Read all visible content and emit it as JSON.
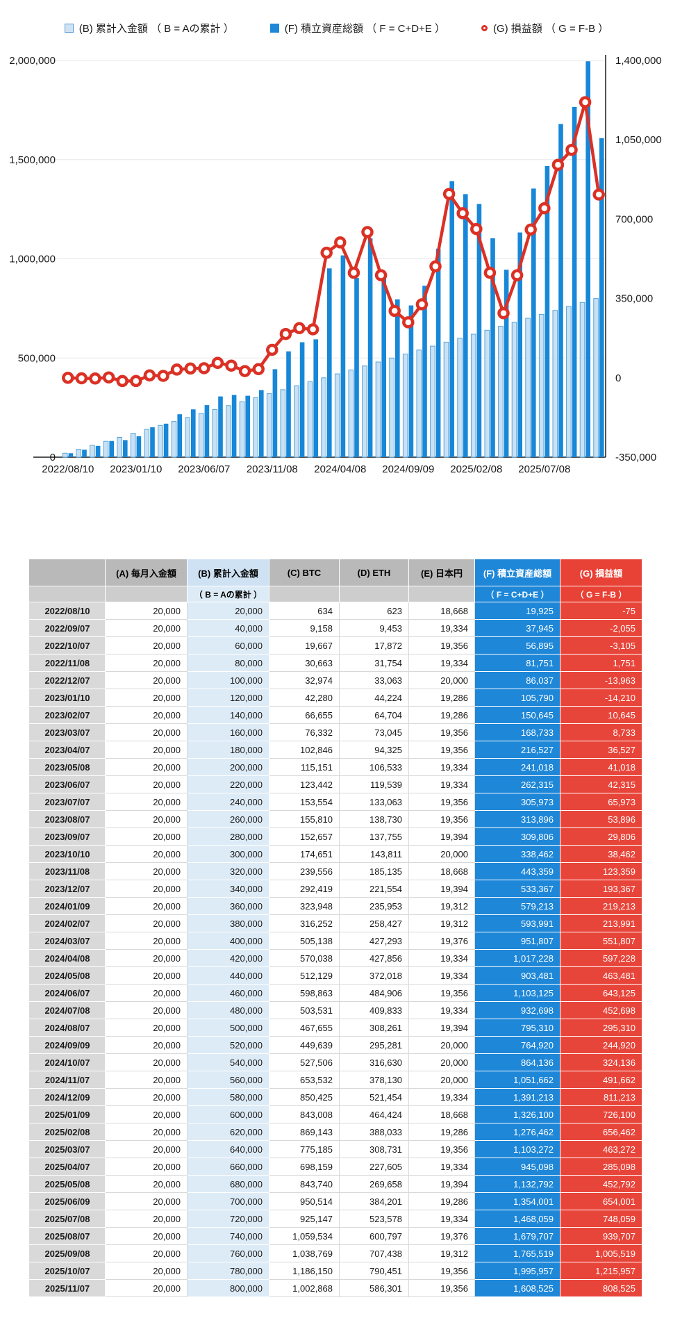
{
  "legend": [
    {
      "label": "(B) 累計入金額 （ B = Aの累計 ）",
      "marker": "light-square",
      "color": "#cfe2f3",
      "border": "#5b9bd5"
    },
    {
      "label": "(F) 積立資産総額 （ F = C+D+E ）",
      "marker": "solid-square",
      "color": "#1e87d8"
    },
    {
      "label": "(G) 損益額 （ G = F-B ）",
      "marker": "open-ring",
      "color": "#db3125"
    }
  ],
  "chart_data": {
    "type": "bar",
    "subtype": "grouped-bars-with-line",
    "x": [
      "2022/08/10",
      "2022/09/07",
      "2022/10/07",
      "2022/11/08",
      "2022/12/07",
      "2023/01/10",
      "2023/02/07",
      "2023/03/07",
      "2023/04/07",
      "2023/05/08",
      "2023/06/07",
      "2023/07/07",
      "2023/08/07",
      "2023/09/07",
      "2023/10/10",
      "2023/11/08",
      "2023/12/07",
      "2024/01/09",
      "2024/02/07",
      "2024/03/07",
      "2024/04/08",
      "2024/05/08",
      "2024/06/07",
      "2024/07/08",
      "2024/08/07",
      "2024/09/09",
      "2024/10/07",
      "2024/11/07",
      "2024/12/09",
      "2025/01/09",
      "2025/02/08",
      "2025/03/07",
      "2025/04/07",
      "2025/05/08",
      "2025/06/09",
      "2025/07/08",
      "2025/08/07",
      "2025/09/08",
      "2025/10/07",
      "2025/11/07"
    ],
    "series": [
      {
        "name": "(B) 累計入金額",
        "type": "bar",
        "axis": "left",
        "color": "#c9e1f4",
        "border": "#55a4da",
        "values": [
          20000,
          40000,
          60000,
          80000,
          100000,
          120000,
          140000,
          160000,
          180000,
          200000,
          220000,
          240000,
          260000,
          280000,
          300000,
          320000,
          340000,
          360000,
          380000,
          400000,
          420000,
          440000,
          460000,
          480000,
          500000,
          520000,
          540000,
          560000,
          580000,
          600000,
          620000,
          640000,
          660000,
          680000,
          700000,
          720000,
          740000,
          760000,
          780000,
          800000
        ]
      },
      {
        "name": "(F) 積立資産総額",
        "type": "bar",
        "axis": "left",
        "color": "#1787d8",
        "values": [
          19925,
          37945,
          56895,
          81751,
          86037,
          105790,
          150645,
          168733,
          216527,
          241018,
          262315,
          305973,
          313896,
          309806,
          338462,
          443359,
          533367,
          579213,
          593991,
          951807,
          1017228,
          903481,
          1103125,
          932698,
          795310,
          764920,
          864136,
          1051662,
          1391213,
          1326100,
          1276462,
          1103272,
          945098,
          1132792,
          1354001,
          1468059,
          1679707,
          1765519,
          1995957,
          1608525
        ]
      },
      {
        "name": "(G) 損益額",
        "type": "line",
        "axis": "right",
        "color": "#db3125",
        "marker": "open-circle",
        "values": [
          -75,
          -2055,
          -3105,
          1751,
          -13963,
          -14210,
          10645,
          8733,
          36527,
          41018,
          42315,
          65973,
          53896,
          29806,
          38462,
          123359,
          193367,
          219213,
          213991,
          551807,
          597228,
          463481,
          643125,
          452698,
          295310,
          244920,
          324136,
          491662,
          811213,
          726100,
          656462,
          463272,
          285098,
          452792,
          654001,
          748059,
          939707,
          1005519,
          1215957,
          808525
        ]
      }
    ],
    "left_axis": {
      "min": 0,
      "max": 2000000,
      "ticks": [
        "2,000,000",
        "1,500,000",
        "1,000,000",
        "500,000",
        "0"
      ]
    },
    "right_axis": {
      "min": -350000,
      "max": 1400000,
      "ticks": [
        "1,400,000",
        "1,050,000",
        "700,000",
        "350,000",
        "0",
        "-350,000"
      ]
    },
    "x_tick_labels": [
      "2022/08/10",
      "2023/01/10",
      "2023/06/07",
      "2023/11/08",
      "2024/04/08",
      "2024/09/09",
      "2025/02/08",
      "2025/07/08"
    ],
    "x_tick_every": 5,
    "grid": true,
    "legend_position": "top"
  },
  "table": {
    "headers": [
      "",
      "(A) 毎月入金額",
      "(B) 累計入金額",
      "(C) BTC",
      "(D) ETH",
      "(E) 日本円",
      "(F) 積立資産総額",
      "(G) 損益額"
    ],
    "subheaders": [
      "",
      "",
      "（ B = Aの累計 ）",
      "",
      "",
      "",
      "（ F = C+D+E ）",
      "（ G = F-B ）"
    ],
    "rows": [
      [
        "2022/08/10",
        20000,
        20000,
        634,
        623,
        18668,
        19925,
        -75
      ],
      [
        "2022/09/07",
        20000,
        40000,
        9158,
        9453,
        19334,
        37945,
        -2055
      ],
      [
        "2022/10/07",
        20000,
        60000,
        19667,
        17872,
        19356,
        56895,
        -3105
      ],
      [
        "2022/11/08",
        20000,
        80000,
        30663,
        31754,
        19334,
        81751,
        1751
      ],
      [
        "2022/12/07",
        20000,
        100000,
        32974,
        33063,
        20000,
        86037,
        -13963
      ],
      [
        "2023/01/10",
        20000,
        120000,
        42280,
        44224,
        19286,
        105790,
        -14210
      ],
      [
        "2023/02/07",
        20000,
        140000,
        66655,
        64704,
        19286,
        150645,
        10645
      ],
      [
        "2023/03/07",
        20000,
        160000,
        76332,
        73045,
        19356,
        168733,
        8733
      ],
      [
        "2023/04/07",
        20000,
        180000,
        102846,
        94325,
        19356,
        216527,
        36527
      ],
      [
        "2023/05/08",
        20000,
        200000,
        115151,
        106533,
        19334,
        241018,
        41018
      ],
      [
        "2023/06/07",
        20000,
        220000,
        123442,
        119539,
        19334,
        262315,
        42315
      ],
      [
        "2023/07/07",
        20000,
        240000,
        153554,
        133063,
        19356,
        305973,
        65973
      ],
      [
        "2023/08/07",
        20000,
        260000,
        155810,
        138730,
        19356,
        313896,
        53896
      ],
      [
        "2023/09/07",
        20000,
        280000,
        152657,
        137755,
        19394,
        309806,
        29806
      ],
      [
        "2023/10/10",
        20000,
        300000,
        174651,
        143811,
        20000,
        338462,
        38462
      ],
      [
        "2023/11/08",
        20000,
        320000,
        239556,
        185135,
        18668,
        443359,
        123359
      ],
      [
        "2023/12/07",
        20000,
        340000,
        292419,
        221554,
        19394,
        533367,
        193367
      ],
      [
        "2024/01/09",
        20000,
        360000,
        323948,
        235953,
        19312,
        579213,
        219213
      ],
      [
        "2024/02/07",
        20000,
        380000,
        316252,
        258427,
        19312,
        593991,
        213991
      ],
      [
        "2024/03/07",
        20000,
        400000,
        505138,
        427293,
        19376,
        951807,
        551807
      ],
      [
        "2024/04/08",
        20000,
        420000,
        570038,
        427856,
        19334,
        1017228,
        597228
      ],
      [
        "2024/05/08",
        20000,
        440000,
        512129,
        372018,
        19334,
        903481,
        463481
      ],
      [
        "2024/06/07",
        20000,
        460000,
        598863,
        484906,
        19356,
        1103125,
        643125
      ],
      [
        "2024/07/08",
        20000,
        480000,
        503531,
        409833,
        19334,
        932698,
        452698
      ],
      [
        "2024/08/07",
        20000,
        500000,
        467655,
        308261,
        19394,
        795310,
        295310
      ],
      [
        "2024/09/09",
        20000,
        520000,
        449639,
        295281,
        20000,
        764920,
        244920
      ],
      [
        "2024/10/07",
        20000,
        540000,
        527506,
        316630,
        20000,
        864136,
        324136
      ],
      [
        "2024/11/07",
        20000,
        560000,
        653532,
        378130,
        20000,
        1051662,
        491662
      ],
      [
        "2024/12/09",
        20000,
        580000,
        850425,
        521454,
        19334,
        1391213,
        811213
      ],
      [
        "2025/01/09",
        20000,
        600000,
        843008,
        464424,
        18668,
        1326100,
        726100
      ],
      [
        "2025/02/08",
        20000,
        620000,
        869143,
        388033,
        19286,
        1276462,
        656462
      ],
      [
        "2025/03/07",
        20000,
        640000,
        775185,
        308731,
        19356,
        1103272,
        463272
      ],
      [
        "2025/04/07",
        20000,
        660000,
        698159,
        227605,
        19334,
        945098,
        285098
      ],
      [
        "2025/05/08",
        20000,
        680000,
        843740,
        269658,
        19394,
        1132792,
        452792
      ],
      [
        "2025/06/09",
        20000,
        700000,
        950514,
        384201,
        19286,
        1354001,
        654001
      ],
      [
        "2025/07/08",
        20000,
        720000,
        925147,
        523578,
        19334,
        1468059,
        748059
      ],
      [
        "2025/08/07",
        20000,
        740000,
        1059534,
        600797,
        19376,
        1679707,
        939707
      ],
      [
        "2025/09/08",
        20000,
        760000,
        1038769,
        707438,
        19312,
        1765519,
        1005519
      ],
      [
        "2025/10/07",
        20000,
        780000,
        1186150,
        790451,
        19356,
        1995957,
        1215957
      ],
      [
        "2025/11/07",
        20000,
        800000,
        1002868,
        586301,
        19356,
        1608525,
        808525
      ]
    ]
  },
  "colors": {
    "bar_light": "#c9e1f4",
    "bar_light_border": "#55a4da",
    "bar_dark": "#1787d8",
    "line_red": "#db3125",
    "grid": "#e7e7e7",
    "axis": "#1a1a1a",
    "header_gray": "#b9b9b9",
    "header_blue": "#1e87d8",
    "header_red": "#e84135",
    "cell_light_blue": "#ddebf6",
    "cell_date_gray": "#d9d9d9"
  }
}
